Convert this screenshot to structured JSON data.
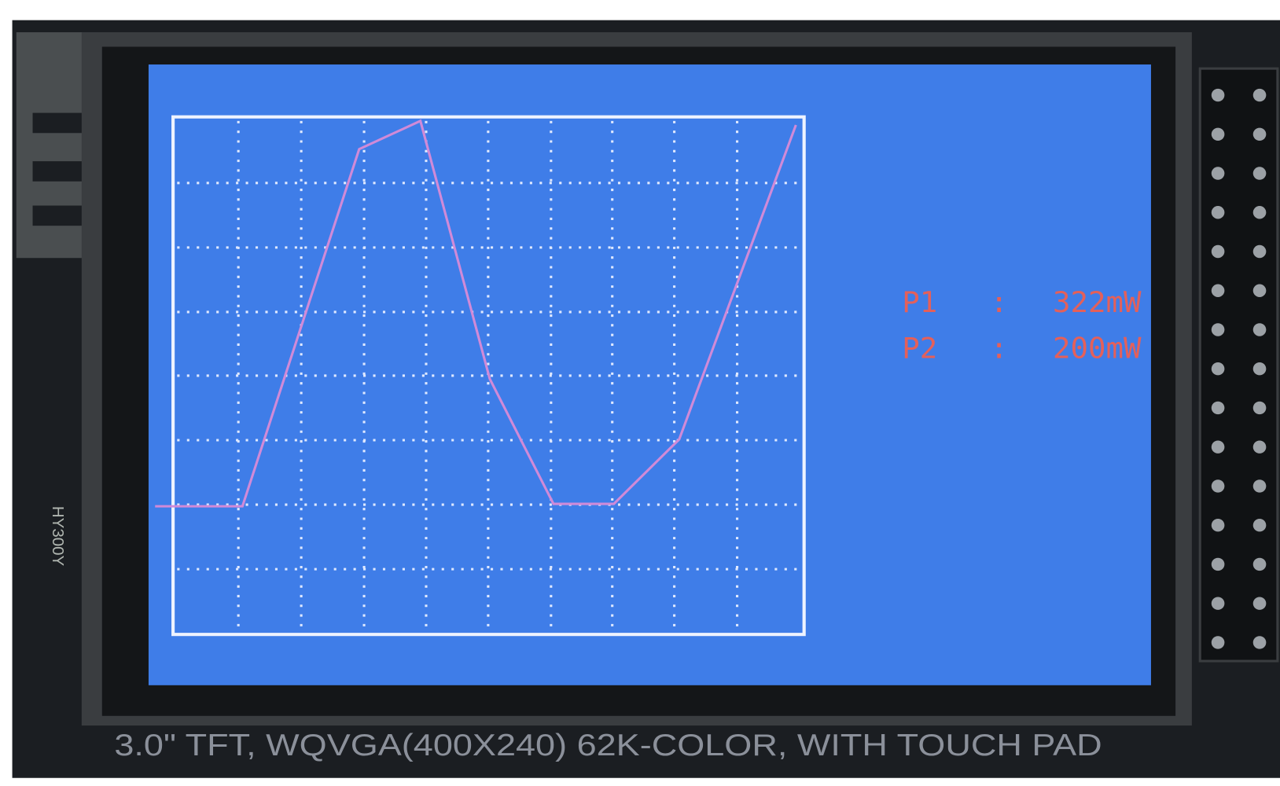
{
  "screen": {
    "readings": [
      {
        "label": "P1",
        "separator": ":",
        "value": "322mW"
      },
      {
        "label": "P2",
        "separator": ":",
        "value": "200mW"
      }
    ]
  },
  "board": {
    "caption": "3.0\" TFT, WQVGA(400X240) 62K-COLOR, WITH TOUCH PAD",
    "side_label": "HY300Y"
  }
}
